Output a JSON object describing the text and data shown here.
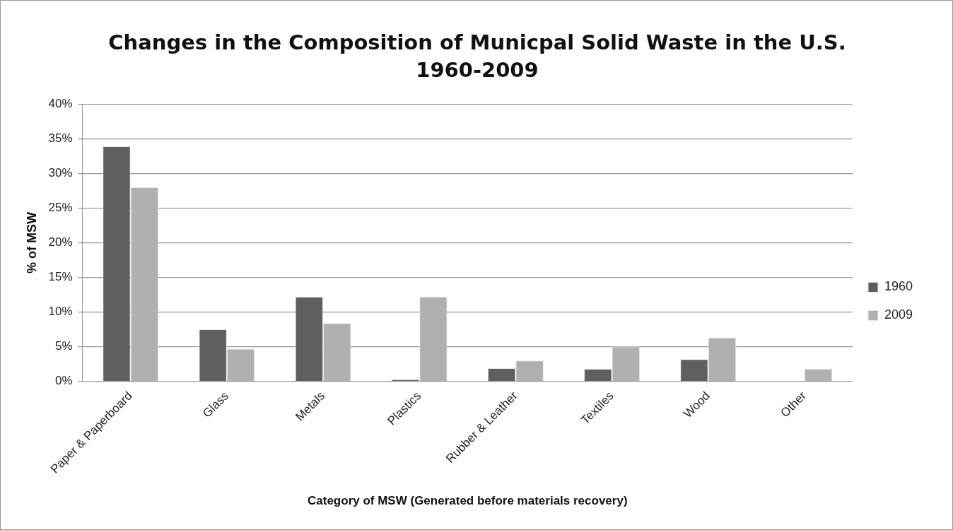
{
  "chart_data": {
    "type": "bar",
    "title": "Changes in the Composition of Municpal Solid Waste in the U.S. 1960-2009",
    "xlabel": "Category of MSW (Generated before materials recovery)",
    "ylabel": "% of MSW",
    "categories": [
      "Paper & Paperboard",
      "Glass",
      "Metals",
      "Plastics",
      "Rubber & Leather",
      "Textiles",
      "Wood",
      "Other"
    ],
    "series": [
      {
        "name": "1960",
        "color": "#5f5f5f",
        "values": [
          33.9,
          7.5,
          12.2,
          0.3,
          1.9,
          1.8,
          3.2,
          0
        ]
      },
      {
        "name": "2009",
        "color": "#b0b0b0",
        "values": [
          28.0,
          4.7,
          8.4,
          12.2,
          3.0,
          5.0,
          6.3,
          1.8
        ]
      }
    ],
    "ylim": [
      0,
      40
    ],
    "yticks": [
      {
        "value": 0,
        "label": "0%"
      },
      {
        "value": 5,
        "label": "5%"
      },
      {
        "value": 10,
        "label": "10%"
      },
      {
        "value": 15,
        "label": "15%"
      },
      {
        "value": 20,
        "label": "20%"
      },
      {
        "value": 25,
        "label": "25%"
      },
      {
        "value": 30,
        "label": "30%"
      },
      {
        "value": 35,
        "label": "35%"
      },
      {
        "value": 40,
        "label": "40%"
      }
    ],
    "grid": "y",
    "legend": "right"
  }
}
